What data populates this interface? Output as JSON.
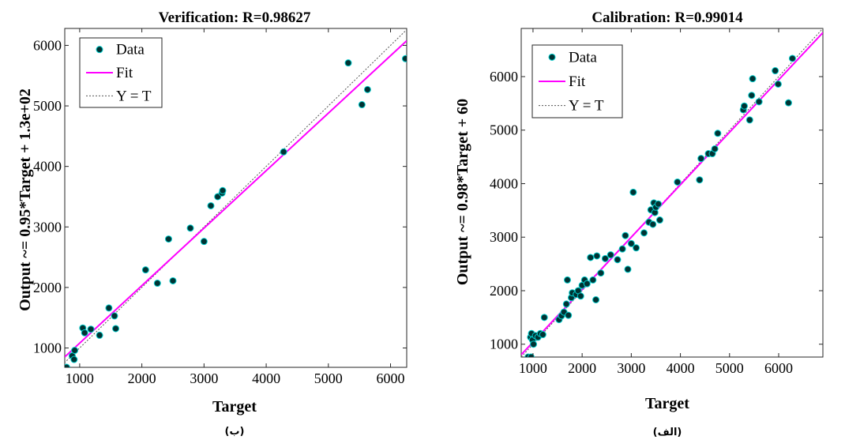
{
  "chart_data": [
    {
      "type": "scatter",
      "title": "Verification: R=0.98627",
      "xlabel": "Target",
      "ylabel": "Output ~= 0.95*Target + 1.3e+02",
      "caption": "(ب)",
      "xlim": [
        760,
        6260
      ],
      "ylim": [
        680,
        6280
      ],
      "xticks": [
        "1000",
        "2000",
        "3000",
        "4000",
        "5000",
        "6000"
      ],
      "yticks": [
        "1000",
        "2000",
        "3000",
        "4000",
        "5000",
        "6000"
      ],
      "legend": {
        "position": "top-left",
        "data": "Data",
        "fit": "Fit",
        "identity": "Y = T"
      },
      "fit": {
        "slope": 0.95,
        "intercept": 130
      },
      "colors": {
        "marker_fill": "#003333",
        "marker_edge": "#00cccc",
        "fit": "#ff00ff",
        "identity": "#555555"
      },
      "points": [
        [
          790,
          680
        ],
        [
          880,
          870
        ],
        [
          910,
          810
        ],
        [
          920,
          960
        ],
        [
          1050,
          1330
        ],
        [
          1080,
          1250
        ],
        [
          1180,
          1310
        ],
        [
          1320,
          1210
        ],
        [
          1470,
          1660
        ],
        [
          1560,
          1530
        ],
        [
          1580,
          1320
        ],
        [
          2060,
          2290
        ],
        [
          2250,
          2070
        ],
        [
          2430,
          2800
        ],
        [
          2500,
          2110
        ],
        [
          2780,
          2980
        ],
        [
          3000,
          2760
        ],
        [
          3110,
          3350
        ],
        [
          3220,
          3500
        ],
        [
          3290,
          3560
        ],
        [
          3300,
          3600
        ],
        [
          4280,
          4240
        ],
        [
          5320,
          5710
        ],
        [
          5540,
          5020
        ],
        [
          5630,
          5270
        ],
        [
          6240,
          5780
        ]
      ]
    },
    {
      "type": "scatter",
      "title": "Calibration: R=0.99014",
      "xlabel": "Target",
      "ylabel": "Output ~= 0.98*Target + 60",
      "caption": "(الف)",
      "xlim": [
        760,
        6900
      ],
      "ylim": [
        760,
        6900
      ],
      "xticks": [
        "1000",
        "2000",
        "3000",
        "4000",
        "5000",
        "6000"
      ],
      "yticks": [
        "1000",
        "2000",
        "3000",
        "4000",
        "5000",
        "6000"
      ],
      "legend": {
        "position": "top-left",
        "data": "Data",
        "fit": "Fit",
        "identity": "Y = T"
      },
      "fit": {
        "slope": 0.98,
        "intercept": 60
      },
      "colors": {
        "marker_fill": "#003333",
        "marker_edge": "#00cccc",
        "fit": "#ff00ff",
        "identity": "#555555"
      },
      "points": [
        [
          900,
          760
        ],
        [
          960,
          760
        ],
        [
          950,
          1130
        ],
        [
          970,
          1200
        ],
        [
          990,
          1080
        ],
        [
          1010,
          1000
        ],
        [
          1050,
          1160
        ],
        [
          1100,
          1130
        ],
        [
          1150,
          1200
        ],
        [
          1200,
          1180
        ],
        [
          1230,
          1500
        ],
        [
          1530,
          1460
        ],
        [
          1580,
          1530
        ],
        [
          1630,
          1600
        ],
        [
          1680,
          1750
        ],
        [
          1700,
          2200
        ],
        [
          1720,
          1540
        ],
        [
          1780,
          1870
        ],
        [
          1800,
          1960
        ],
        [
          1880,
          1930
        ],
        [
          1920,
          2000
        ],
        [
          1970,
          1900
        ],
        [
          2000,
          2100
        ],
        [
          2050,
          2200
        ],
        [
          2100,
          2130
        ],
        [
          2170,
          2620
        ],
        [
          2220,
          2200
        ],
        [
          2280,
          1830
        ],
        [
          2300,
          2650
        ],
        [
          2380,
          2330
        ],
        [
          2470,
          2600
        ],
        [
          2580,
          2670
        ],
        [
          2720,
          2580
        ],
        [
          2820,
          2780
        ],
        [
          2880,
          3030
        ],
        [
          2930,
          2400
        ],
        [
          3000,
          2880
        ],
        [
          3040,
          3840
        ],
        [
          3100,
          2800
        ],
        [
          3260,
          3080
        ],
        [
          3360,
          3280
        ],
        [
          3400,
          3510
        ],
        [
          3440,
          3240
        ],
        [
          3460,
          3640
        ],
        [
          3480,
          3460
        ],
        [
          3500,
          3560
        ],
        [
          3550,
          3620
        ],
        [
          3580,
          3320
        ],
        [
          3940,
          4030
        ],
        [
          4390,
          4070
        ],
        [
          4420,
          4470
        ],
        [
          4570,
          4560
        ],
        [
          4650,
          4560
        ],
        [
          4700,
          4650
        ],
        [
          4760,
          4940
        ],
        [
          5280,
          5380
        ],
        [
          5300,
          5450
        ],
        [
          5410,
          5190
        ],
        [
          5450,
          5650
        ],
        [
          5470,
          5960
        ],
        [
          5600,
          5530
        ],
        [
          5930,
          6110
        ],
        [
          5990,
          5860
        ],
        [
          6200,
          5510
        ],
        [
          6280,
          6340
        ]
      ]
    }
  ]
}
